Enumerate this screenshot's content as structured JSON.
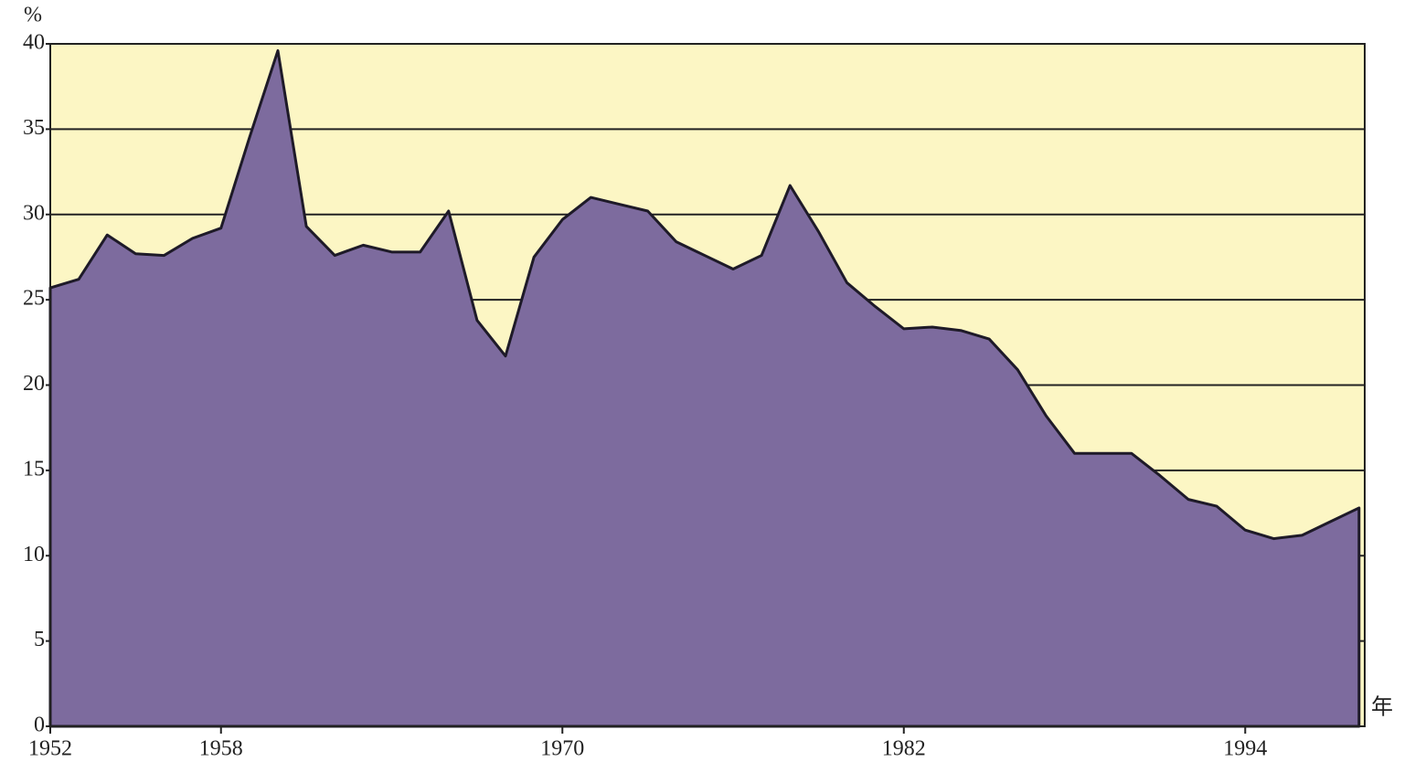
{
  "chart_data": {
    "type": "area",
    "y_label": "%",
    "x_label": "年",
    "x": [
      1952,
      1953,
      1954,
      1955,
      1956,
      1957,
      1958,
      1959,
      1960,
      1961,
      1962,
      1963,
      1964,
      1965,
      1966,
      1967,
      1968,
      1969,
      1970,
      1971,
      1972,
      1973,
      1974,
      1975,
      1976,
      1977,
      1978,
      1979,
      1980,
      1981,
      1982,
      1983,
      1984,
      1985,
      1986,
      1987,
      1988,
      1989,
      1990,
      1991,
      1992,
      1993,
      1994,
      1995,
      1996,
      1997,
      1998
    ],
    "values": [
      25.7,
      26.2,
      28.8,
      27.7,
      27.6,
      28.6,
      29.2,
      34.5,
      39.6,
      29.3,
      27.6,
      28.2,
      27.8,
      27.8,
      30.2,
      23.8,
      21.7,
      27.5,
      29.7,
      31.0,
      30.6,
      30.2,
      28.4,
      27.6,
      26.8,
      27.6,
      31.7,
      29.0,
      26.0,
      24.6,
      23.3,
      23.4,
      23.2,
      22.7,
      20.9,
      18.2,
      16.0,
      16.0,
      16.0,
      14.7,
      13.3,
      12.9,
      11.5,
      11.0,
      11.2,
      12.0,
      12.8
    ],
    "color": "#7d6b9e",
    "background": "#fcf6c4",
    "xlim": [
      1952,
      1998.2
    ],
    "xticks": [
      1952,
      1958,
      1970,
      1982,
      1994
    ],
    "ylim": [
      0,
      40
    ],
    "yticks": [
      0,
      5,
      10,
      15,
      20,
      25,
      30,
      35,
      40
    ],
    "grid": true
  }
}
